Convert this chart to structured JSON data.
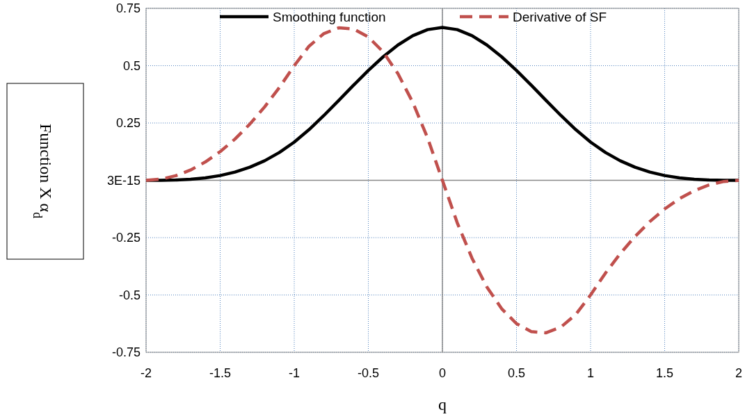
{
  "chart_data": {
    "type": "line",
    "xlabel": "q",
    "ylabel": "Function X α$_{d}$",
    "x": [
      -2,
      -1.9,
      -1.8,
      -1.7,
      -1.6,
      -1.5,
      -1.4,
      -1.3,
      -1.2,
      -1.1,
      -1,
      -0.9,
      -0.8,
      -0.7,
      -0.6,
      -0.5,
      -0.4,
      -0.3,
      -0.2,
      -0.1,
      0,
      0.1,
      0.2,
      0.3,
      0.4,
      0.5,
      0.6,
      0.7,
      0.8,
      0.9,
      1,
      1.1,
      1.2,
      1.3,
      1.4,
      1.5,
      1.6,
      1.7,
      1.8,
      1.9,
      2
    ],
    "series": [
      {
        "name": "Smoothing function",
        "color": "#000000",
        "line_style": "solid",
        "values": [
          0,
          0.0002,
          0.0013,
          0.0045,
          0.0107,
          0.0208,
          0.036,
          0.0572,
          0.0853,
          0.1215,
          0.1667,
          0.2212,
          0.2827,
          0.3482,
          0.4147,
          0.4792,
          0.5387,
          0.5902,
          0.6307,
          0.6572,
          0.6667,
          0.6572,
          0.6307,
          0.5902,
          0.5387,
          0.4792,
          0.4147,
          0.3482,
          0.2827,
          0.2212,
          0.1667,
          0.1215,
          0.0853,
          0.0572,
          0.036,
          0.0208,
          0.0107,
          0.0045,
          0.0013,
          0.0002,
          0
        ]
      },
      {
        "name": "Derivative of SF",
        "color": "#c0504d",
        "line_style": "dashed",
        "values": [
          0,
          0.005,
          0.02,
          0.045,
          0.08,
          0.125,
          0.18,
          0.245,
          0.32,
          0.405,
          0.5,
          0.585,
          0.64,
          0.665,
          0.66,
          0.625,
          0.56,
          0.465,
          0.34,
          0.185,
          0,
          -0.185,
          -0.34,
          -0.465,
          -0.56,
          -0.625,
          -0.66,
          -0.665,
          -0.64,
          -0.585,
          -0.5,
          -0.405,
          -0.32,
          -0.245,
          -0.18,
          -0.125,
          -0.08,
          -0.045,
          -0.02,
          -0.005,
          0
        ]
      }
    ],
    "xlim": [
      -2,
      2
    ],
    "xticks": [
      -2,
      -1.5,
      -1,
      -0.5,
      0,
      0.5,
      1,
      1.5,
      2
    ],
    "ylim": [
      -0.75,
      0.75
    ],
    "yticks": [
      -0.75,
      -0.5,
      -0.25,
      {
        "value": 0,
        "label": "3E-15"
      },
      0.25,
      0.5,
      0.75
    ],
    "grid": true,
    "legend": "top"
  }
}
